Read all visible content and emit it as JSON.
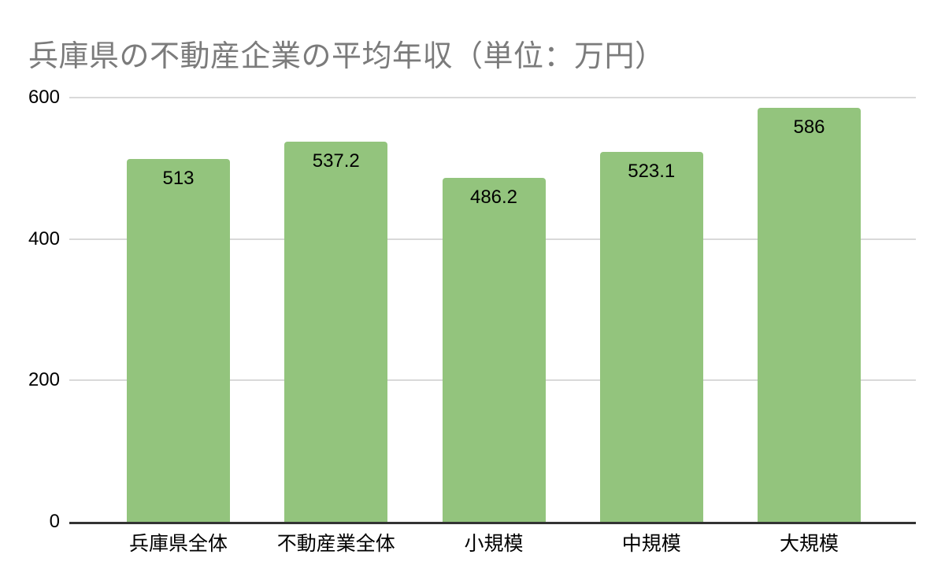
{
  "chart_data": {
    "type": "bar",
    "title": "兵庫県の不動産企業の平均年収（単位：万円）",
    "categories": [
      "兵庫県全体",
      "不動産業全体",
      "小規模",
      "中規模",
      "大規模"
    ],
    "values": [
      513,
      537.2,
      486.2,
      523.1,
      586
    ],
    "xlabel": "",
    "ylabel": "",
    "ylim": [
      0,
      600
    ],
    "y_ticks": [
      600,
      400,
      200,
      0
    ],
    "grid": "horizontal",
    "legend": "none",
    "colors": {
      "bar": "#93c47d",
      "title": "#7b7b7b",
      "gridline": "#d9d9d9",
      "axis": "#333333",
      "label": "#000000",
      "background": "#ffffff"
    }
  }
}
